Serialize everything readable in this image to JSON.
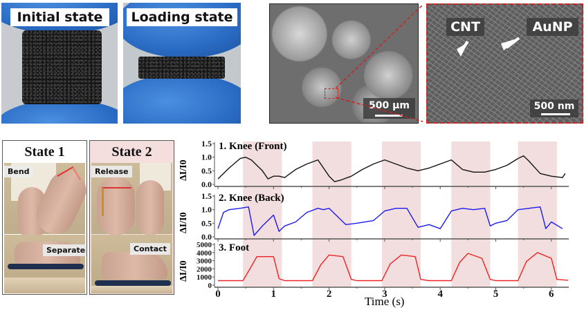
{
  "figure": {
    "panel_a": {
      "photos": [
        {
          "label": "Initial state"
        },
        {
          "label": "Loading state"
        }
      ]
    },
    "panel_b": {
      "sem_low_mag": {
        "scale_label": "500 µm"
      },
      "sem_high_mag": {
        "scale_label": "500 nm",
        "annotations": [
          "CNT",
          "AuNP"
        ]
      }
    },
    "panel_c": {
      "states": [
        {
          "title": "State 1",
          "top_tag": "Bend",
          "bottom_tag": "Separate"
        },
        {
          "title": "State 2",
          "top_tag": "Release",
          "bottom_tag": "Contact"
        }
      ]
    },
    "panel_d": {
      "xlabel": "Time (s)",
      "ylabel": "ΔI/I0",
      "x_ticks": [
        "0",
        "1",
        "2",
        "3",
        "4",
        "5",
        "6"
      ],
      "subplots": [
        {
          "title": "1. Knee (Front)",
          "y_ticks": [
            "0.0",
            "0.5",
            "1.0",
            "1.5"
          ],
          "color": "#111111"
        },
        {
          "title": "2. Knee (Back)",
          "y_ticks": [
            "0.0",
            "0.5",
            "1.0",
            "1.5"
          ],
          "color": "#1a1aee"
        },
        {
          "title": "3. Foot",
          "y_ticks": [
            "0",
            "1000",
            "2000",
            "3000",
            "4000",
            "5000"
          ],
          "color": "#ee2222"
        }
      ],
      "band_color": "#f2dede"
    }
  },
  "chart_data": {
    "type": "line",
    "title": "",
    "xlabel": "Time (s)",
    "ylabel": "ΔI/I0",
    "xlim": [
      0,
      6.3
    ],
    "shaded_state2_intervals_s": [
      [
        0.45,
        1.15
      ],
      [
        1.7,
        2.4
      ],
      [
        2.95,
        3.65
      ],
      [
        4.2,
        4.9
      ],
      [
        5.4,
        6.1
      ]
    ],
    "subplots": [
      {
        "name": "1. Knee (Front)",
        "ylim": [
          0,
          1.5
        ],
        "x": [
          0,
          0.2,
          0.4,
          0.5,
          0.6,
          0.8,
          0.9,
          1.0,
          1.1,
          1.2,
          1.4,
          1.6,
          1.8,
          2.0,
          2.1,
          2.2,
          2.4,
          2.6,
          2.8,
          3.0,
          3.2,
          3.4,
          3.6,
          3.8,
          4.0,
          4.2,
          4.4,
          4.6,
          4.8,
          5.0,
          5.2,
          5.4,
          5.5,
          5.6,
          5.8,
          6.0,
          6.2,
          6.25
        ],
        "values": [
          0.2,
          0.6,
          0.95,
          1.0,
          0.9,
          0.5,
          0.2,
          0.3,
          0.3,
          0.25,
          0.55,
          0.75,
          0.9,
          0.3,
          0.1,
          0.15,
          0.3,
          0.55,
          0.75,
          0.9,
          0.75,
          0.6,
          0.5,
          0.6,
          0.75,
          0.9,
          0.55,
          0.45,
          0.45,
          0.55,
          0.7,
          0.95,
          1.05,
          0.85,
          0.4,
          0.3,
          0.25,
          0.4
        ]
      },
      {
        "name": "2. Knee (Back)",
        "ylim": [
          0,
          1.5
        ],
        "x": [
          0,
          0.1,
          0.2,
          0.4,
          0.55,
          0.65,
          0.8,
          1.0,
          1.1,
          1.2,
          1.4,
          1.6,
          1.8,
          1.9,
          2.0,
          2.3,
          2.5,
          2.8,
          3.0,
          3.1,
          3.2,
          3.4,
          3.6,
          3.8,
          4.0,
          4.2,
          4.4,
          4.6,
          4.8,
          4.9,
          5.0,
          5.2,
          5.4,
          5.6,
          5.8,
          5.9,
          6.0,
          6.2
        ],
        "values": [
          0.3,
          0.9,
          1.0,
          1.05,
          1.1,
          0.05,
          0.4,
          0.8,
          0.2,
          0.4,
          0.55,
          0.9,
          1.05,
          1.0,
          1.05,
          0.45,
          0.5,
          0.6,
          0.95,
          1.0,
          1.05,
          1.05,
          0.35,
          0.45,
          0.3,
          0.95,
          1.05,
          1.0,
          1.05,
          0.4,
          0.5,
          0.6,
          1.0,
          1.05,
          1.1,
          0.3,
          0.55,
          0.3
        ]
      },
      {
        "name": "3. Foot",
        "ylim": [
          0,
          5000
        ],
        "x": [
          0,
          0.45,
          0.6,
          0.7,
          1.0,
          1.1,
          1.2,
          1.7,
          1.85,
          2.0,
          2.25,
          2.4,
          2.5,
          2.95,
          3.1,
          3.3,
          3.55,
          3.65,
          3.8,
          4.2,
          4.35,
          4.5,
          4.75,
          4.9,
          5.0,
          5.4,
          5.55,
          5.75,
          6.0,
          6.1,
          6.3
        ],
        "values": [
          550,
          550,
          2300,
          3500,
          3500,
          800,
          550,
          550,
          2500,
          3700,
          3500,
          700,
          550,
          550,
          2600,
          3700,
          3500,
          700,
          550,
          550,
          2800,
          3900,
          3300,
          700,
          550,
          550,
          2900,
          4000,
          3300,
          700,
          600
        ]
      }
    ]
  }
}
